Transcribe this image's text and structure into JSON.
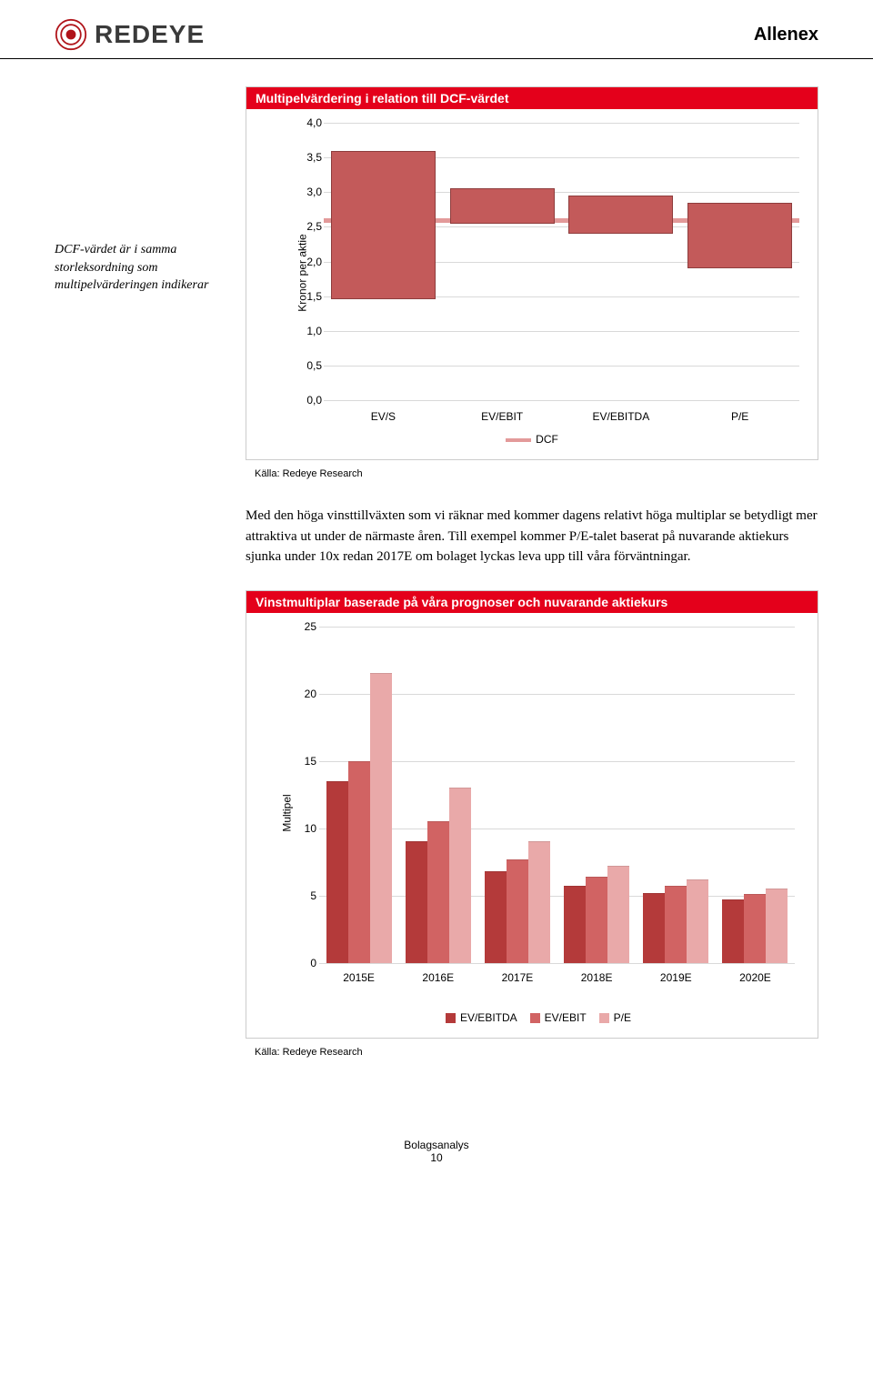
{
  "header": {
    "logo_text": "REDEYE",
    "company": "Allenex"
  },
  "sidebar_note": "DCF-värdet är i samma storleksordning som multipelvärderingen indikerar",
  "chart1": {
    "type": "floating-bar",
    "title": "Multipelvärdering i relation till DCF-värdet",
    "ylabel": "Kronor per aktie",
    "ymin": 0.0,
    "ymax": 4.0,
    "ystep": 0.5,
    "ytick_labels": [
      "0,0",
      "0,5",
      "1,0",
      "1,5",
      "2,0",
      "2,5",
      "3,0",
      "3,5",
      "4,0"
    ],
    "categories": [
      "EV/S",
      "EV/EBIT",
      "EV/EBITDA",
      "P/E"
    ],
    "bars": [
      {
        "low": 1.45,
        "high": 3.6
      },
      {
        "low": 2.55,
        "high": 3.05
      },
      {
        "low": 2.4,
        "high": 2.95
      },
      {
        "low": 1.9,
        "high": 2.85
      }
    ],
    "bar_fill": "#c35a5a",
    "bar_border": "#8e3d3d",
    "dcf_value": 2.6,
    "dcf_color": "#e39a9a",
    "dcf_label": "DCF",
    "grid_color": "#d9d9d9",
    "source": "Källa: Redeye Research"
  },
  "body_text": "Med den höga vinsttillväxten som vi räknar med kommer dagens relativt höga multiplar se betydligt mer attraktiva ut under de närmaste åren. Till exempel kommer P/E-talet baserat på nuvarande aktiekurs sjunka under 10x redan 2017E om bolaget lyckas leva upp till våra förväntningar.",
  "chart2": {
    "type": "grouped-bar",
    "title": "Vinstmultiplar baserade på våra prognoser och nuvarande aktiekurs",
    "ylabel": "Multipel",
    "ymin": 0,
    "ymax": 25,
    "ystep": 5,
    "ytick_labels": [
      "0",
      "5",
      "10",
      "15",
      "20",
      "25"
    ],
    "categories": [
      "2015E",
      "2016E",
      "2017E",
      "2018E",
      "2019E",
      "2020E"
    ],
    "series": [
      {
        "name": "EV/EBITDA",
        "color": "#b43a3a",
        "values": [
          13.5,
          9.0,
          6.8,
          5.7,
          5.2,
          4.7
        ]
      },
      {
        "name": "EV/EBIT",
        "color": "#d16363",
        "values": [
          15.0,
          10.5,
          7.7,
          6.4,
          5.7,
          5.1
        ]
      },
      {
        "name": "P/E",
        "color": "#e9a9a9",
        "values": [
          21.5,
          13.0,
          9.0,
          7.2,
          6.2,
          5.5
        ]
      }
    ],
    "grid_color": "#d9d9d9",
    "source": "Källa: Redeye Research"
  },
  "footer": {
    "label": "Bolagsanalys",
    "page": "10"
  }
}
